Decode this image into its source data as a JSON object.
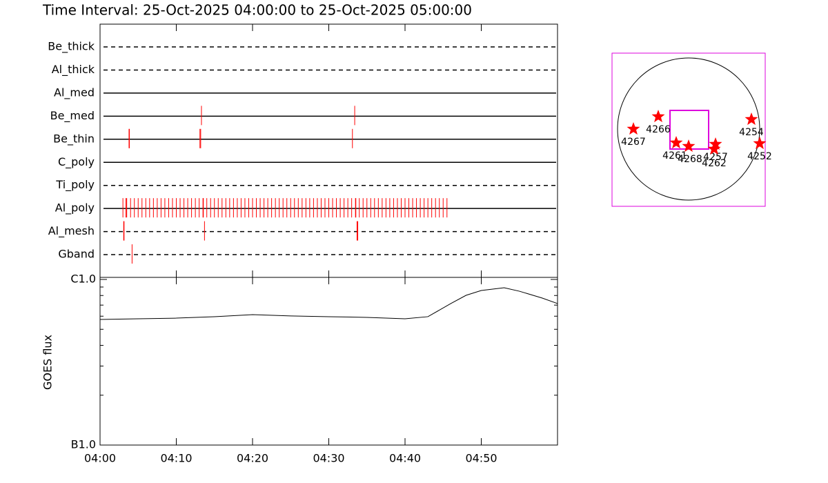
{
  "title": "Time Interval: 25-Oct-2025 04:00:00 to 25-Oct-2025 05:00:00",
  "chart_data": [
    {
      "type": "timeline",
      "color": "#ff0000",
      "categories": [
        "Be_thick",
        "Al_thick",
        "Al_med",
        "Be_med",
        "Be_thin",
        "C_poly",
        "Ti_poly",
        "Al_poly",
        "Al_mesh",
        "Gband"
      ],
      "line_styles": [
        "dashed",
        "dashed",
        "solid",
        "solid",
        "solid",
        "solid",
        "dashed",
        "solid",
        "dashed",
        "dashed"
      ],
      "xlim": [
        0,
        60
      ],
      "events": [
        [],
        [],
        [],
        [
          13.3,
          33.4
        ],
        [
          3.8,
          3.85,
          13.1,
          13.2,
          33.1
        ],
        [],
        [],
        [
          3.0,
          3.4,
          3.5,
          4.0,
          4.5,
          5.0,
          5.5,
          6.0,
          6.5,
          7.0,
          7.5,
          8.0,
          8.5,
          9.0,
          9.5,
          10.0,
          10.5,
          11.0,
          11.5,
          12.0,
          12.5,
          13.0,
          13.5,
          13.55,
          14.0,
          14.5,
          15.0,
          15.5,
          16.0,
          16.5,
          17.0,
          17.5,
          18.0,
          18.5,
          19.0,
          19.5,
          20.0,
          20.5,
          21.0,
          21.5,
          22.0,
          22.5,
          23.0,
          23.5,
          24.0,
          24.5,
          25.0,
          25.5,
          26.0,
          26.5,
          27.0,
          27.5,
          28.0,
          28.5,
          29.0,
          29.5,
          30.0,
          30.5,
          31.0,
          31.5,
          32.0,
          32.5,
          33.0,
          33.5,
          33.55,
          34.0,
          34.5,
          35.0,
          35.5,
          36.0,
          36.5,
          37.0,
          37.5,
          38.0,
          38.5,
          39.0,
          39.5,
          40.0,
          40.5,
          41.0,
          41.5,
          42.0,
          42.5,
          43.0,
          43.5,
          44.0,
          44.5,
          45.0,
          45.5
        ],
        [
          3.1,
          3.15,
          13.7,
          33.7,
          33.8
        ],
        [
          4.2
        ]
      ]
    },
    {
      "type": "line",
      "y_label": "GOES flux",
      "log_y": true,
      "color": "#000000",
      "x": [
        0,
        5,
        10,
        15,
        20,
        25,
        30,
        35,
        40,
        43,
        46,
        48,
        50,
        53,
        55,
        58,
        60
      ],
      "values": [
        5.73e-07,
        5.79e-07,
        5.84e-07,
        5.96e-07,
        6.13e-07,
        6.02e-07,
        5.96e-07,
        5.9e-07,
        5.79e-07,
        5.96e-07,
        7.15e-07,
        8.02e-07,
        8.58e-07,
        8.91e-07,
        8.49e-07,
        7.72e-07,
        7.15e-07
      ],
      "xlim": [
        0,
        60
      ],
      "xticks": [
        {
          "value": 0,
          "label": "04:00"
        },
        {
          "value": 10,
          "label": "04:10"
        },
        {
          "value": 20,
          "label": "04:20"
        },
        {
          "value": 30,
          "label": "04:30"
        },
        {
          "value": 40,
          "label": "04:40"
        },
        {
          "value": 50,
          "label": "04:50"
        }
      ],
      "ylim": [
        1e-07,
        1e-06
      ],
      "yticks": [
        {
          "value": 1e-07,
          "label": "B1.0"
        },
        {
          "value": 1e-06,
          "label": "C1.0"
        }
      ],
      "yminorticks": [
        2e-07,
        3e-07,
        4e-07,
        5e-07,
        6e-07,
        7e-07,
        8e-07,
        9e-07
      ]
    },
    {
      "type": "map",
      "color": "#ff0000",
      "frame_color": "#dd00dd",
      "regions": [
        "4267",
        "4266",
        "4261",
        "4268",
        "4257",
        "4262",
        "4254",
        "4252"
      ]
    }
  ]
}
